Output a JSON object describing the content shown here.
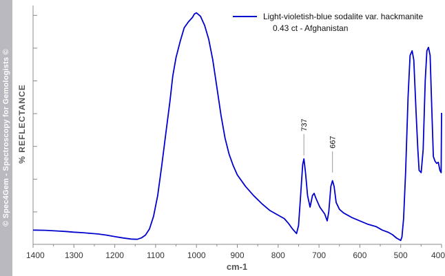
{
  "sidebar": {
    "copyright": "© Spec4Gem - Spectroscopy for Gemologists ©"
  },
  "chart_data": {
    "type": "line",
    "xlabel": "cm-1",
    "ylabel": "% REFLECTANCE",
    "xlim": [
      1400,
      400
    ],
    "x_reversed": true,
    "ylim": [
      0,
      100
    ],
    "y_ticks_labeled": false,
    "grid": false,
    "x_ticks": [
      1400,
      1300,
      1200,
      1100,
      1000,
      900,
      800,
      700,
      600,
      500,
      400
    ],
    "x_tick_labels": [
      "1400",
      "1300",
      "1200",
      "1100",
      "1000",
      "900",
      "800",
      "700",
      "600",
      "500",
      "400"
    ],
    "legend": {
      "position": "top-right",
      "entries": [
        {
          "line1": "Light-violetish-blue sodalite var. hackmanite",
          "line2": "0.43 ct - Afghanistan",
          "color": "#0000cc"
        }
      ]
    },
    "annotations": [
      {
        "x": 737,
        "y": 36.0,
        "text": "737"
      },
      {
        "x": 667,
        "y": 28.5,
        "text": "667"
      }
    ],
    "series": [
      {
        "color": "#0000cc",
        "x": [
          1400,
          1370,
          1340,
          1320,
          1300,
          1280,
          1260,
          1240,
          1220,
          1200,
          1180,
          1160,
          1145,
          1135,
          1125,
          1115,
          1105,
          1095,
          1085,
          1075,
          1065,
          1058,
          1050,
          1040,
          1030,
          1020,
          1010,
          1005,
          1000,
          990,
          980,
          970,
          960,
          950,
          940,
          930,
          920,
          910,
          900,
          880,
          860,
          840,
          820,
          800,
          785,
          775,
          765,
          755,
          750,
          745,
          740,
          737,
          733,
          728,
          722,
          716,
          712,
          708,
          703,
          698,
          692,
          686,
          680,
          676,
          671,
          667,
          663,
          658,
          650,
          640,
          620,
          600,
          580,
          560,
          545,
          530,
          520,
          510,
          500,
          497,
          493,
          488,
          482,
          477,
          472,
          468,
          462,
          458,
          455,
          450,
          445,
          440,
          436,
          432,
          428,
          424,
          420,
          416,
          412,
          408,
          404,
          401,
          400
        ],
        "y": [
          5.0,
          4.9,
          4.6,
          4.4,
          4.1,
          3.9,
          3.6,
          3.3,
          2.8,
          2.2,
          1.6,
          1.1,
          1.0,
          1.6,
          2.8,
          5.5,
          11.0,
          20.0,
          33.0,
          47.0,
          61.0,
          72.0,
          80.0,
          87.0,
          93.0,
          95.5,
          97.5,
          99.0,
          99.5,
          98.0,
          94.0,
          88.0,
          79.0,
          67.0,
          55.0,
          45.0,
          38.0,
          33.0,
          29.0,
          24.0,
          20.0,
          16.5,
          13.5,
          11.5,
          10.0,
          8.0,
          5.5,
          3.5,
          7.0,
          20.0,
          33.5,
          36.0,
          30.0,
          20.0,
          15.0,
          20.0,
          21.0,
          19.0,
          17.0,
          15.0,
          13.5,
          12.0,
          9.0,
          13.0,
          24.0,
          26.5,
          24.0,
          17.0,
          14.0,
          12.5,
          10.5,
          9.0,
          7.5,
          6.5,
          5.0,
          4.0,
          3.0,
          1.5,
          0.5,
          2.0,
          10.0,
          30.0,
          63.0,
          81.0,
          83.0,
          79.0,
          55.0,
          40.0,
          31.0,
          30.0,
          40.0,
          70.0,
          83.0,
          84.5,
          81.0,
          58.0,
          37.0,
          35.0,
          34.0,
          34.5,
          31.0,
          30.0,
          56.0
        ]
      }
    ]
  }
}
